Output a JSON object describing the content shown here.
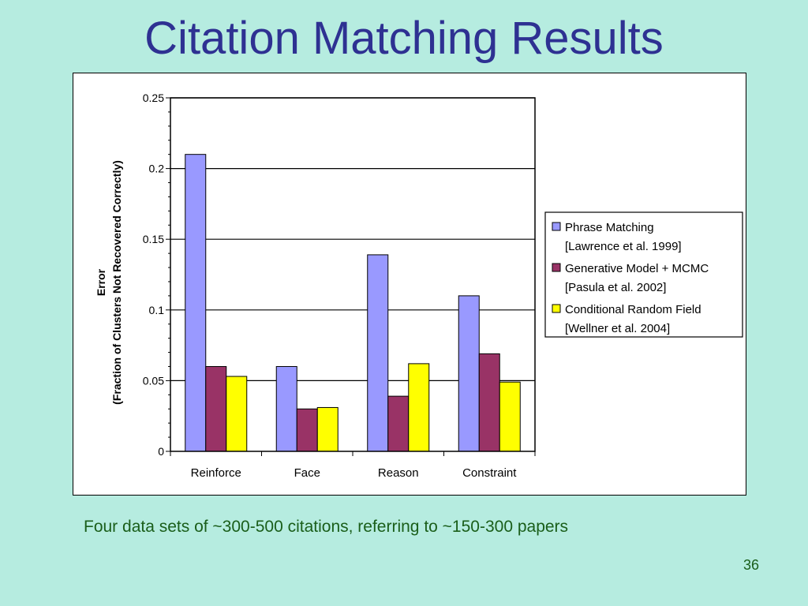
{
  "slide": {
    "title": "Citation Matching Results",
    "caption": "Four data sets of ~300-500 citations, referring to ~150-300 papers",
    "page_number": "36"
  },
  "colors": {
    "background": "#b6ece0",
    "title": "#2e3192",
    "caption": "#1a5e1a"
  },
  "chart_data": {
    "type": "bar",
    "title": "",
    "xlabel": "",
    "ylabel_line1": "Error",
    "ylabel_line2": "(Fraction of Clusters Not Recovered Correctly)",
    "ylim": [
      0,
      0.25
    ],
    "yticks": [
      "0",
      "0.05",
      "0.1",
      "0.15",
      "0.2",
      "0.25"
    ],
    "grid": true,
    "legend_position": "right",
    "categories": [
      "Reinforce",
      "Face",
      "Reason",
      "Constraint"
    ],
    "series": [
      {
        "name": "Phrase Matching",
        "name_line2": "[Lawrence et al. 1999]",
        "color": "#9999ff",
        "values": [
          0.21,
          0.06,
          0.139,
          0.11
        ]
      },
      {
        "name": "Generative Model + MCMC",
        "name_line2": "[Pasula et al. 2002]",
        "color": "#993366",
        "values": [
          0.06,
          0.03,
          0.039,
          0.069
        ]
      },
      {
        "name": "Conditional Random Field",
        "name_line2": "[Wellner et al. 2004]",
        "color": "#ffff00",
        "values": [
          0.053,
          0.031,
          0.062,
          0.049
        ]
      }
    ]
  }
}
